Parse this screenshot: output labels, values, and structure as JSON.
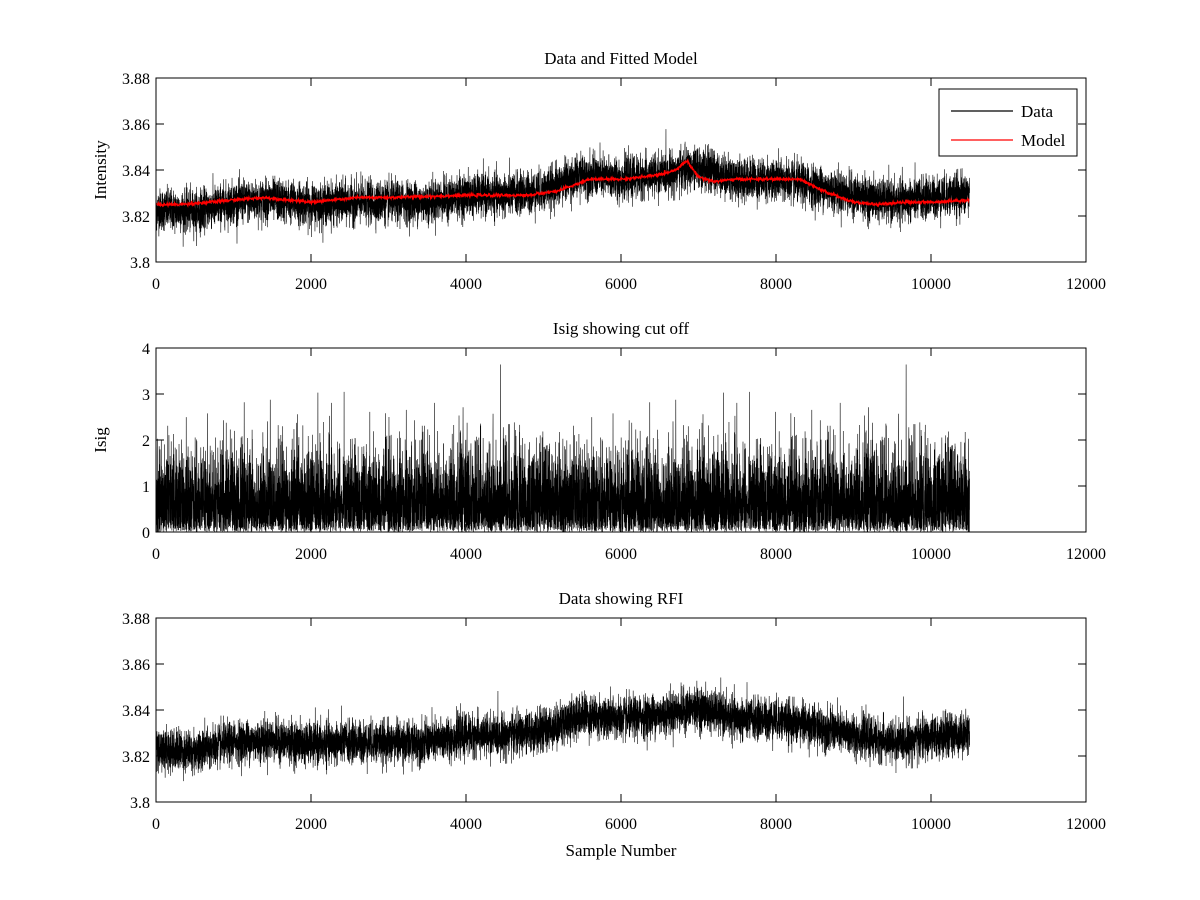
{
  "chart_data": [
    {
      "type": "line",
      "title": "Data and Fitted Model",
      "xlabel": "",
      "ylabel": "Intensity",
      "xlim": [
        0,
        12000
      ],
      "ylim": [
        3.8,
        3.88
      ],
      "xticks": [
        0,
        2000,
        4000,
        6000,
        8000,
        10000,
        12000
      ],
      "xtick_labels": [
        "0",
        "2000",
        "4000",
        "6000",
        "8000",
        "10000",
        "12000"
      ],
      "yticks": [
        3.8,
        3.82,
        3.84,
        3.86,
        3.88
      ],
      "ytick_labels": [
        "3.8",
        "3.82",
        "3.84",
        "3.86",
        "3.88"
      ],
      "grid": false,
      "legend": {
        "placement": "top-right",
        "entries": [
          "Data",
          "Model"
        ]
      },
      "n_samples": 10500,
      "series": [
        {
          "name": "Data",
          "color": "#000000",
          "noise_sd": 0.0045,
          "baseline_x": [
            0,
            500,
            1000,
            1500,
            2000,
            2500,
            3000,
            3500,
            4000,
            4500,
            5000,
            5500,
            6000,
            6500,
            7000,
            7500,
            8000,
            8500,
            9000,
            9500,
            10000,
            10500
          ],
          "baseline_y": [
            3.823,
            3.822,
            3.826,
            3.827,
            3.825,
            3.826,
            3.826,
            3.826,
            3.829,
            3.829,
            3.831,
            3.838,
            3.836,
            3.838,
            3.841,
            3.836,
            3.836,
            3.833,
            3.829,
            3.826,
            3.828,
            3.83
          ]
        },
        {
          "name": "Model",
          "color": "#ff0000",
          "x": [
            0,
            300,
            700,
            1000,
            1400,
            2000,
            2600,
            3000,
            4000,
            4800,
            5200,
            5600,
            6000,
            6300,
            6500,
            6700,
            6850,
            7000,
            7200,
            7500,
            8000,
            8300,
            8600,
            9000,
            9300,
            9700,
            10000,
            10500
          ],
          "y": [
            3.825,
            3.825,
            3.826,
            3.827,
            3.828,
            3.826,
            3.828,
            3.828,
            3.829,
            3.829,
            3.831,
            3.836,
            3.836,
            3.837,
            3.838,
            3.84,
            3.844,
            3.837,
            3.835,
            3.836,
            3.836,
            3.836,
            3.831,
            3.826,
            3.825,
            3.826,
            3.826,
            3.827
          ]
        }
      ]
    },
    {
      "type": "line",
      "title": "Isig showing cut off",
      "xlabel": "",
      "ylabel": "Isig",
      "xlim": [
        0,
        12000
      ],
      "ylim": [
        0,
        4
      ],
      "xticks": [
        0,
        2000,
        4000,
        6000,
        8000,
        10000,
        12000
      ],
      "xtick_labels": [
        "0",
        "2000",
        "4000",
        "6000",
        "8000",
        "10000",
        "12000"
      ],
      "yticks": [
        0,
        1,
        2,
        3,
        4
      ],
      "ytick_labels": [
        "0",
        "1",
        "2",
        "3",
        "4"
      ],
      "grid": false,
      "n_samples": 10500,
      "series": [
        {
          "color": "#000000",
          "distribution": "abs-normal",
          "scale": 0.85,
          "clip_max": 3.8
        }
      ]
    },
    {
      "type": "line",
      "title": "Data showing RFI",
      "xlabel": "Sample Number",
      "ylabel": "",
      "xlim": [
        0,
        12000
      ],
      "ylim": [
        3.8,
        3.88
      ],
      "xticks": [
        0,
        2000,
        4000,
        6000,
        8000,
        10000,
        12000
      ],
      "xtick_labels": [
        "0",
        "2000",
        "4000",
        "6000",
        "8000",
        "10000",
        "12000"
      ],
      "yticks": [
        3.8,
        3.82,
        3.84,
        3.86,
        3.88
      ],
      "ytick_labels": [
        "3.8",
        "3.82",
        "3.84",
        "3.86",
        "3.88"
      ],
      "grid": false,
      "n_samples": 10500,
      "series": [
        {
          "color": "#000000",
          "noise_sd": 0.0045,
          "baseline_x": [
            0,
            500,
            1000,
            1500,
            2000,
            2500,
            3000,
            3500,
            4000,
            4500,
            5000,
            5500,
            6000,
            6500,
            7000,
            7500,
            8000,
            8500,
            9000,
            9500,
            10000,
            10500
          ],
          "baseline_y": [
            3.823,
            3.822,
            3.826,
            3.827,
            3.825,
            3.826,
            3.826,
            3.826,
            3.829,
            3.829,
            3.831,
            3.838,
            3.836,
            3.838,
            3.841,
            3.836,
            3.836,
            3.833,
            3.829,
            3.826,
            3.828,
            3.83
          ]
        }
      ]
    }
  ]
}
